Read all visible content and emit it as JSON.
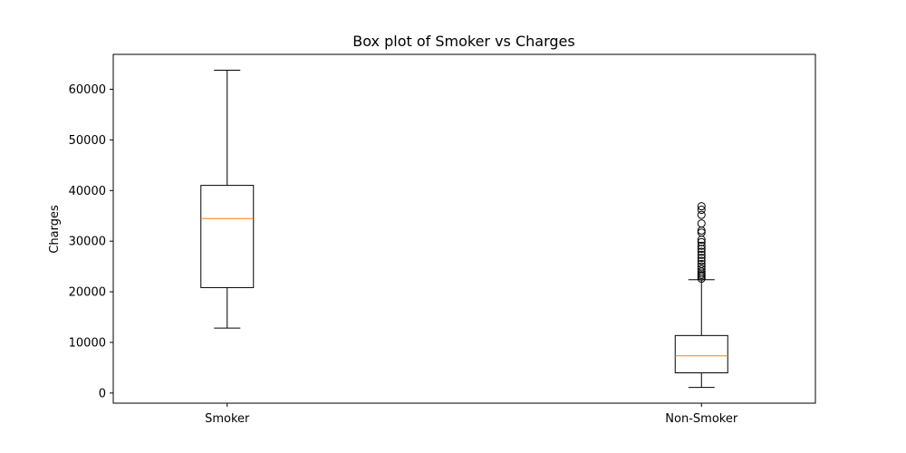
{
  "chart_data": {
    "type": "box",
    "title": "Box plot of Smoker vs Charges",
    "xlabel": "",
    "ylabel": "Charges",
    "ylim": [
      -2000,
      66900
    ],
    "yticks": [
      0,
      10000,
      20000,
      30000,
      40000,
      50000,
      60000
    ],
    "ytick_labels": [
      "0",
      "10000",
      "20000",
      "30000",
      "40000",
      "50000",
      "60000"
    ],
    "categories": [
      "Smoker",
      "Non-Smoker"
    ],
    "boxes": [
      {
        "category": "Smoker",
        "whisker_low": 12830,
        "q1": 20830,
        "median": 34460,
        "q3": 41020,
        "whisker_high": 63770,
        "outliers": []
      },
      {
        "category": "Non-Smoker",
        "whisker_low": 1120,
        "q1": 3990,
        "median": 7350,
        "q3": 11360,
        "whisker_high": 22390,
        "outliers": [
          22600,
          23000,
          23300,
          23600,
          24000,
          24500,
          25000,
          25500,
          26100,
          26700,
          27300,
          27900,
          28500,
          29100,
          29800,
          30300,
          31700,
          32100,
          33500,
          35200,
          36200,
          36900
        ]
      }
    ],
    "colors": {
      "box": "#000000",
      "median": "#ff7f0e",
      "outlier": "#000000"
    },
    "grid": false,
    "legend": "none"
  }
}
